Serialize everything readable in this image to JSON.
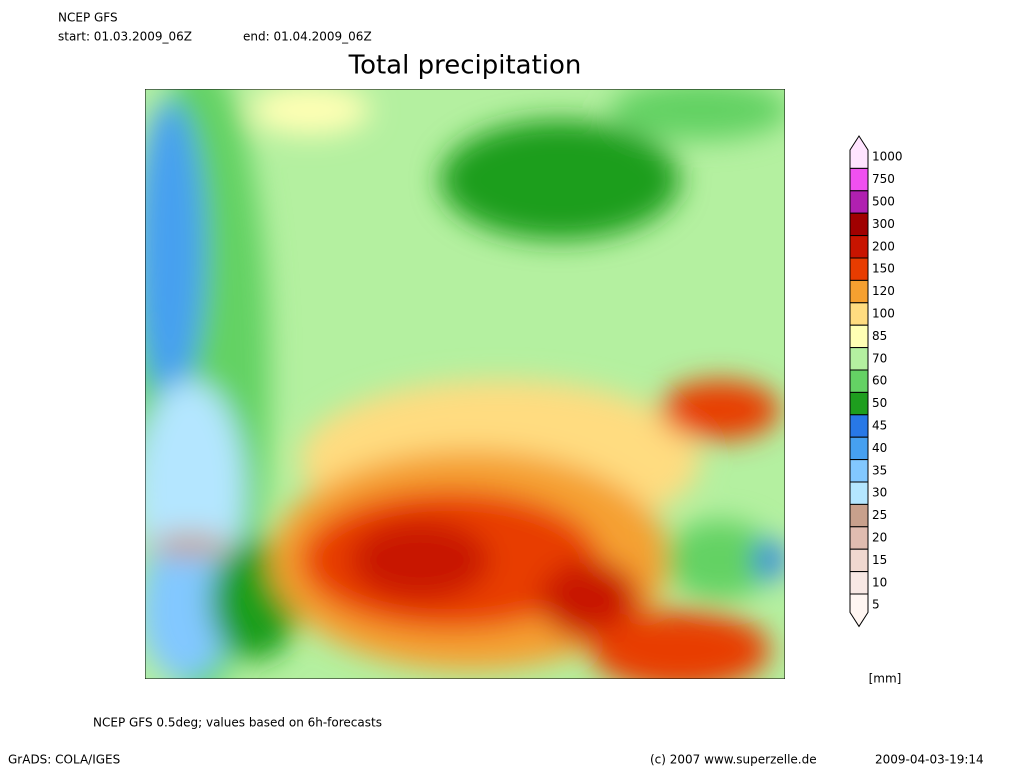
{
  "header": {
    "model": "NCEP GFS",
    "start": "start: 01.03.2009_06Z",
    "end": "end: 01.04.2009_06Z"
  },
  "title": "Total precipitation",
  "legend": {
    "levels": [
      1000,
      750,
      500,
      300,
      200,
      150,
      120,
      100,
      85,
      70,
      60,
      50,
      45,
      40,
      35,
      30,
      25,
      20,
      15,
      10,
      5
    ],
    "colors": [
      "#ffe4ff",
      "#f050f0",
      "#b020b0",
      "#a00000",
      "#c81400",
      "#e83c00",
      "#f5a030",
      "#ffdc80",
      "#ffffb4",
      "#b4f0a0",
      "#64d264",
      "#1e9e1e",
      "#2878e6",
      "#46a0f0",
      "#82c8ff",
      "#b4e6ff",
      "#c8a08c",
      "#e0bcb0",
      "#f0d8d0",
      "#f8e8e4",
      "#fff6f2"
    ],
    "unit": "[mm]"
  },
  "footer": {
    "note": "NCEP GFS 0.5deg; values based on 6h-forecasts",
    "software": "GrADS: COLA/IGES",
    "copyright": "(c) 2007 www.superzelle.de",
    "timestamp": "2009-04-03-19:14"
  }
}
